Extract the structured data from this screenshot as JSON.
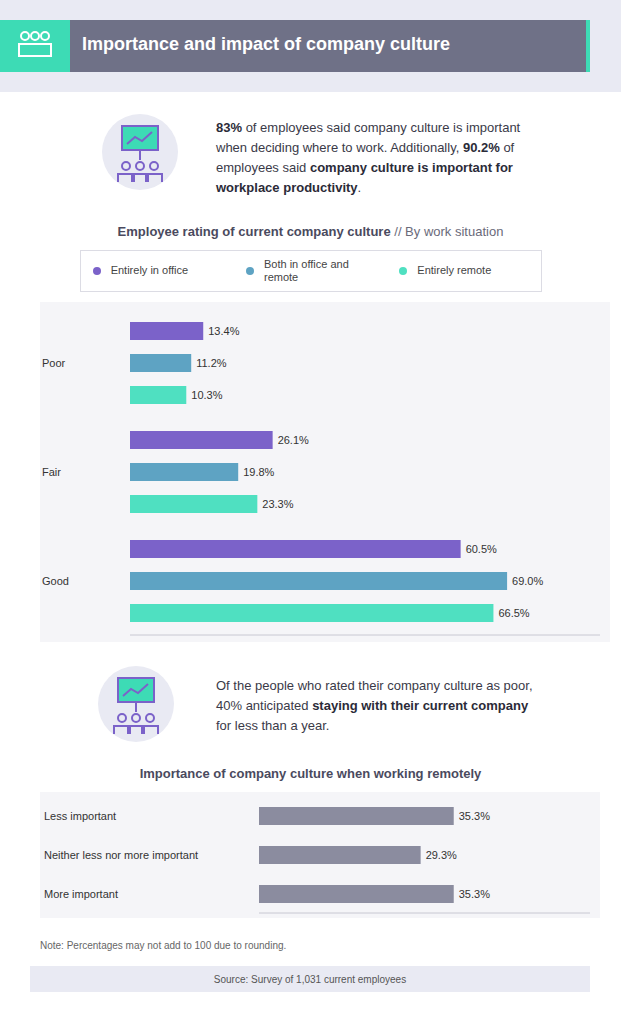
{
  "header": {
    "title": "Importance and impact of company culture"
  },
  "intro": [
    {
      "text": "83%",
      "bold": true
    },
    {
      "text": " of employees said company culture is important when deciding where to work. Additionally, ",
      "bold": false
    },
    {
      "text": "90.2%",
      "bold": true
    },
    {
      "text": " of employees said ",
      "bold": false
    },
    {
      "text": "company culture is important for workplace productivity",
      "bold": true
    },
    {
      "text": ".",
      "bold": false
    }
  ],
  "chart_data": [
    {
      "type": "bar",
      "title": "Employee rating of current company culture",
      "subtitle": "// By work situation",
      "orientation": "horizontal",
      "categories": [
        "Poor",
        "Fair",
        "Good"
      ],
      "series": [
        {
          "name": "Entirely in office",
          "color": "#7b62c9",
          "values": [
            13.4,
            26.1,
            60.5
          ],
          "value_labels": [
            "13.4%",
            "26.1%",
            "60.5%"
          ]
        },
        {
          "name": "Both in office and remote",
          "color": "#5ea3c3",
          "values": [
            11.2,
            19.8,
            69.0
          ],
          "value_labels": [
            "11.2%",
            "19.8%",
            "69.0%"
          ]
        },
        {
          "name": "Entirely remote",
          "color": "#4fe0c1",
          "values": [
            10.3,
            23.3,
            66.5
          ],
          "value_labels": [
            "10.3%",
            "23.3%",
            "66.5%"
          ]
        }
      ],
      "xlim": [
        0,
        86
      ],
      "legend": "top",
      "grid": false,
      "data_labels": true,
      "tick_labels": "y"
    },
    {
      "type": "bar",
      "title": "Importance of company culture when working remotely",
      "orientation": "horizontal",
      "categories": [
        "Less important",
        "Neither less nor more important",
        "More important"
      ],
      "values": [
        35.3,
        29.3,
        35.3
      ],
      "value_labels": [
        "35.3%",
        "29.3%",
        "35.3%"
      ],
      "color": "#8b8c9f",
      "xlim": [
        0,
        60
      ],
      "grid": false,
      "data_labels": true,
      "tick_labels": "y"
    }
  ],
  "callout": [
    {
      "text": "Of the people who rated their company culture as poor, 40% anticipated ",
      "bold": false
    },
    {
      "text": "staying with their current company",
      "bold": true
    },
    {
      "text": " for less than a year.",
      "bold": false
    }
  ],
  "note": "Note: Percentages may not add to 100 due to rounding.",
  "source": "Source: Survey of 1,031 current employees"
}
